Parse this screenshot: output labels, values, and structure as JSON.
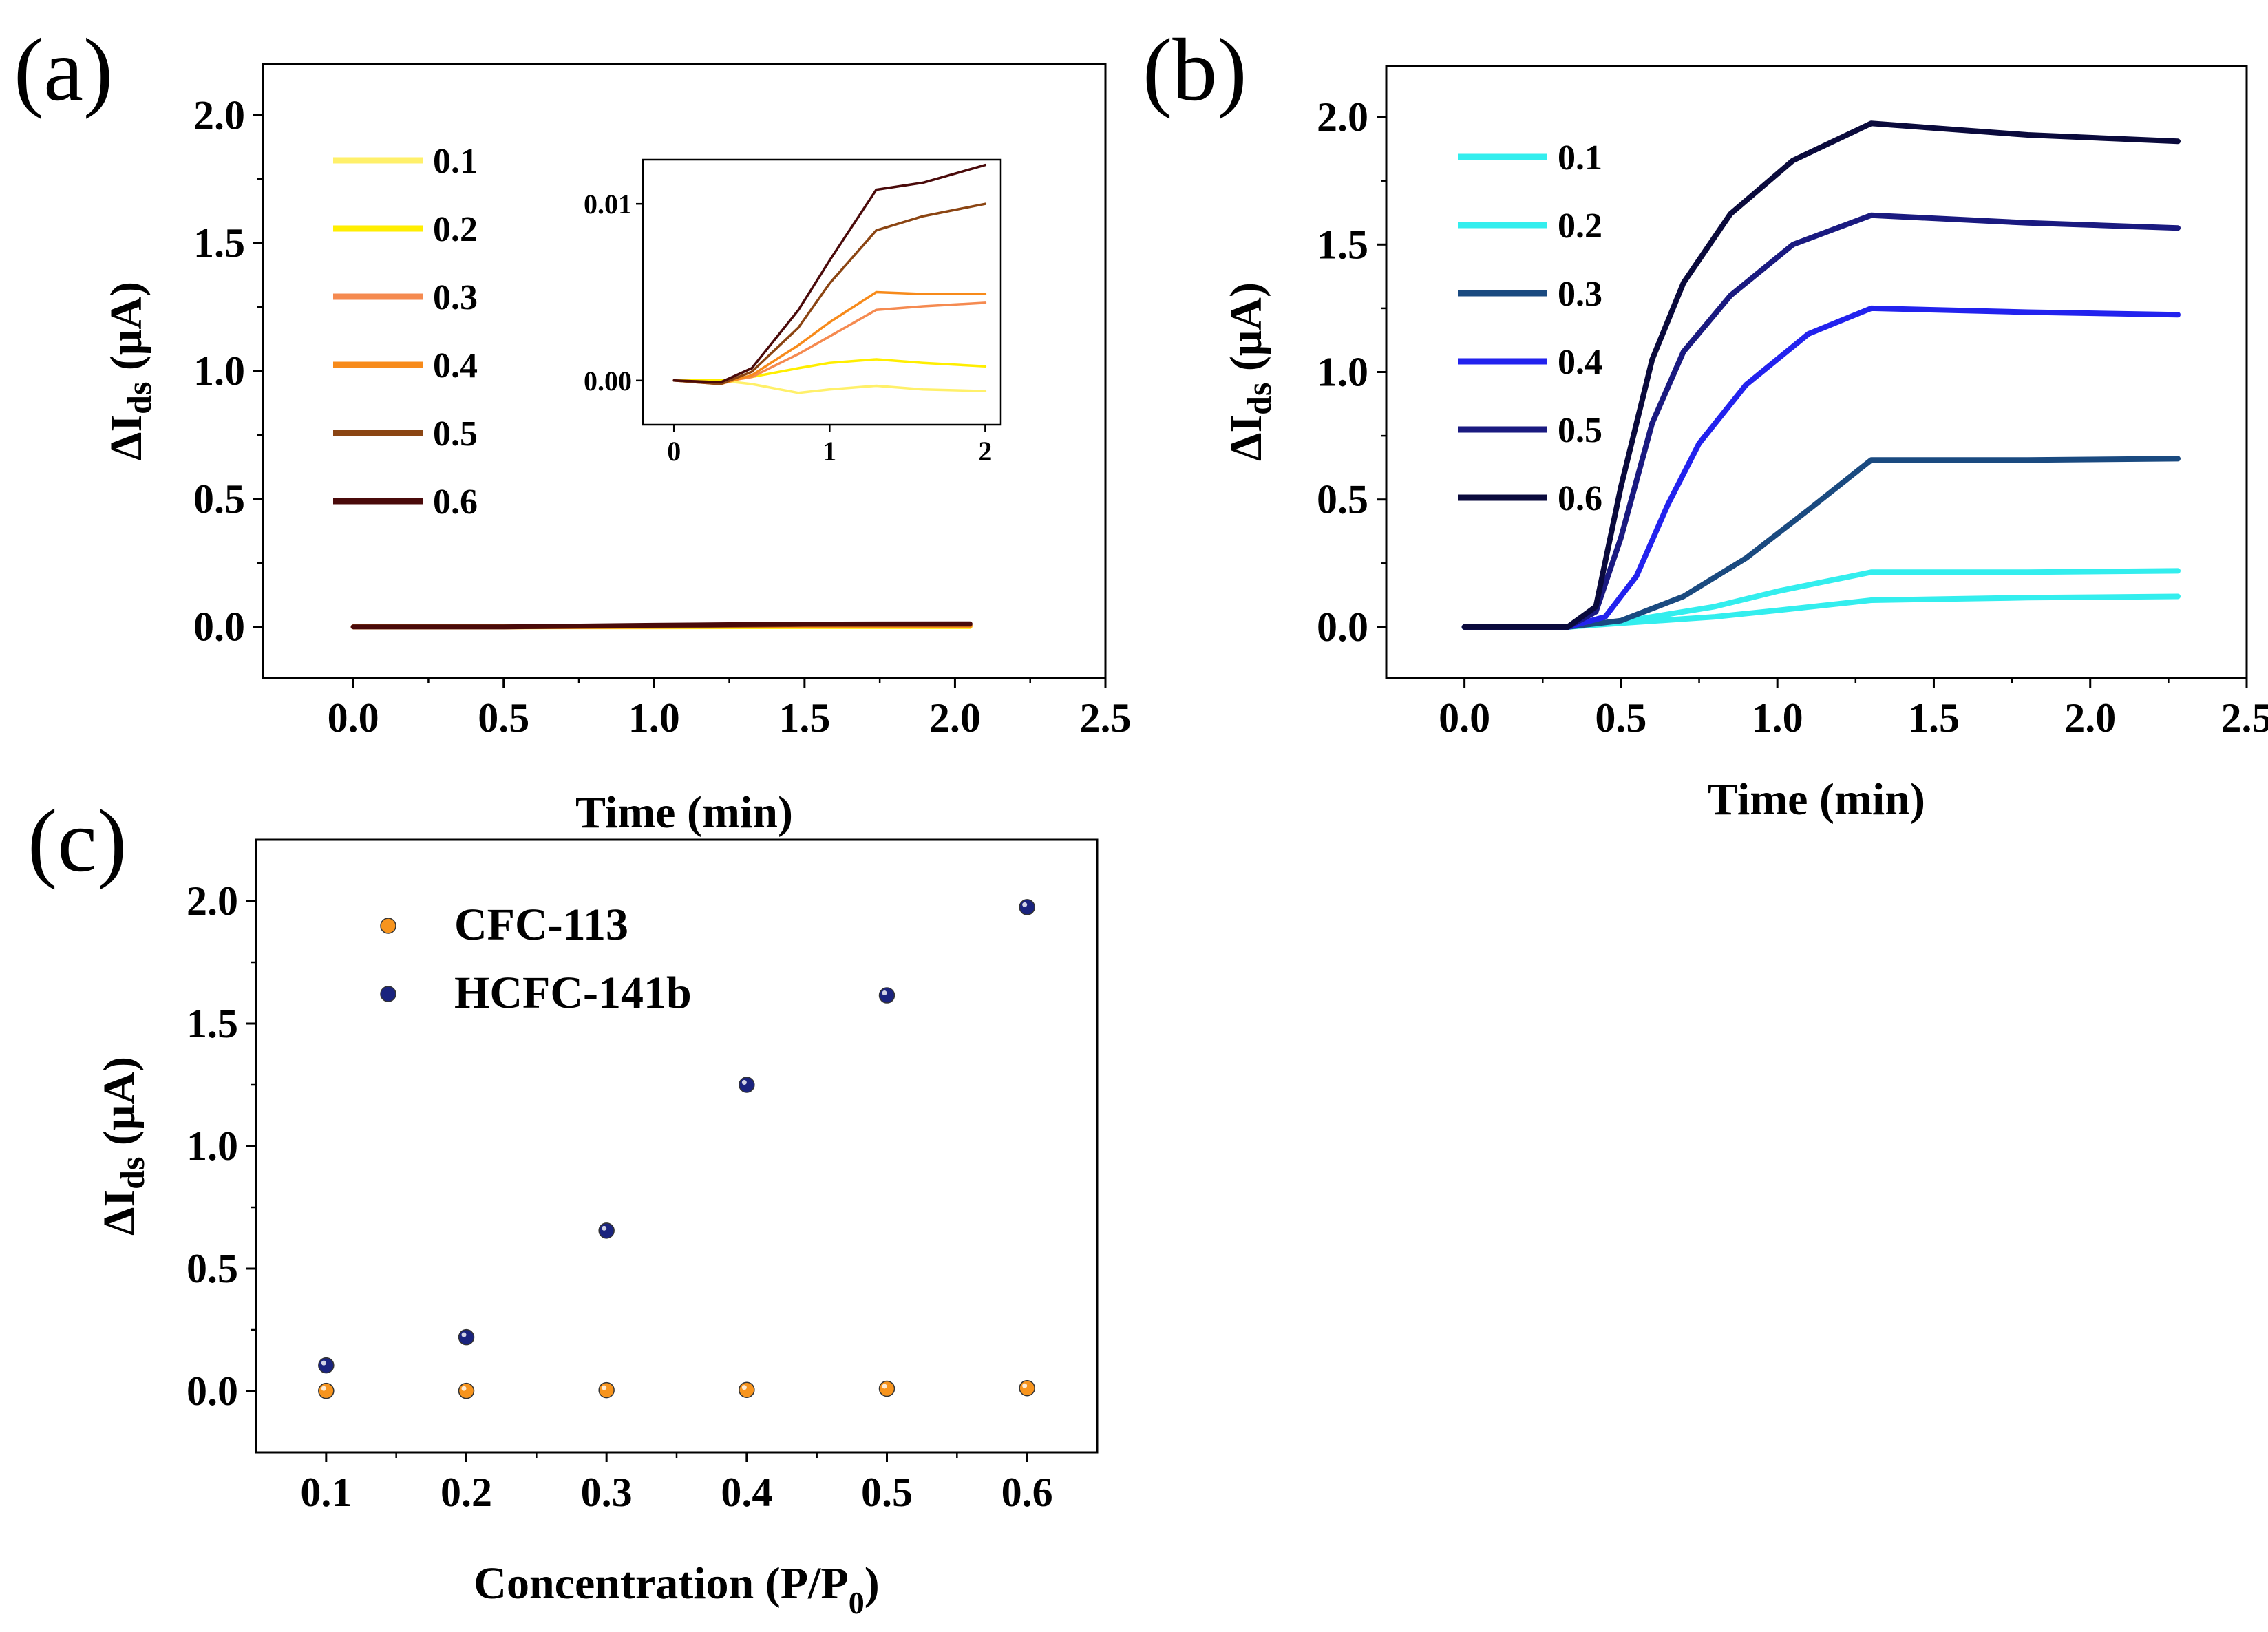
{
  "panel_labels": {
    "a": "(a)",
    "b": "(b)",
    "c": "(c)"
  },
  "chart_data": [
    {
      "panel": "a",
      "type": "line",
      "title": "",
      "xlabel": "Time (min)",
      "ylabel_main": "ΔI",
      "ylabel_sub": "ds",
      "ylabel_unit": " (μA)",
      "xlim": [
        -0.3,
        2.5
      ],
      "ylim": [
        -0.2,
        2.2
      ],
      "xticks": [
        0.0,
        0.5,
        1.0,
        1.5,
        2.0,
        2.5
      ],
      "xtick_labels": [
        "0.0",
        "0.5",
        "1.0",
        "1.5",
        "2.0",
        "2.5"
      ],
      "yticks": [
        0.0,
        0.5,
        1.0,
        1.5,
        2.0
      ],
      "ytick_labels": [
        "0.0",
        "0.5",
        "1.0",
        "1.5",
        "2.0"
      ],
      "legend_position": "top-left",
      "series": [
        {
          "name": "0.1",
          "color": "#fff06a",
          "points": [
            [
              0,
              0
            ],
            [
              0.5,
              0
            ],
            [
              1.0,
              0
            ],
            [
              1.5,
              0.001
            ],
            [
              2.05,
              0.001
            ]
          ]
        },
        {
          "name": "0.2",
          "color": "#ffee00",
          "points": [
            [
              0,
              0
            ],
            [
              0.5,
              0
            ],
            [
              1.0,
              0.001
            ],
            [
              1.5,
              0.001
            ],
            [
              2.05,
              0.001
            ]
          ]
        },
        {
          "name": "0.3",
          "color": "#f58a50",
          "points": [
            [
              0,
              0
            ],
            [
              0.5,
              0
            ],
            [
              1.0,
              0.002
            ],
            [
              1.5,
              0.004
            ],
            [
              2.05,
              0.004
            ]
          ]
        },
        {
          "name": "0.4",
          "color": "#f78a1a",
          "points": [
            [
              0,
              0
            ],
            [
              0.5,
              0
            ],
            [
              1.0,
              0.003
            ],
            [
              1.5,
              0.005
            ],
            [
              2.05,
              0.005
            ]
          ]
        },
        {
          "name": "0.5",
          "color": "#8b4513",
          "points": [
            [
              0,
              0
            ],
            [
              0.5,
              0
            ],
            [
              1.0,
              0.004
            ],
            [
              1.5,
              0.009
            ],
            [
              2.05,
              0.01
            ]
          ]
        },
        {
          "name": "0.6",
          "color": "#4a0a0a",
          "points": [
            [
              0,
              0
            ],
            [
              0.5,
              0
            ],
            [
              1.0,
              0.006
            ],
            [
              1.5,
              0.011
            ],
            [
              2.05,
              0.012
            ]
          ]
        }
      ],
      "inset": {
        "xlim": [
          -0.2,
          2.1
        ],
        "ylim": [
          -0.0025,
          0.0125
        ],
        "xticks": [
          0,
          1,
          2
        ],
        "xtick_labels": [
          "0",
          "1",
          "2"
        ],
        "yticks": [
          0.0,
          0.01
        ],
        "ytick_labels": [
          "0.00",
          "0.01"
        ],
        "series": [
          {
            "name": "0.1",
            "color": "#fff06a",
            "points": [
              [
                0,
                0
              ],
              [
                0.3,
                0
              ],
              [
                0.5,
                -0.0002
              ],
              [
                0.8,
                -0.0007
              ],
              [
                1.0,
                -0.0005
              ],
              [
                1.3,
                -0.0003
              ],
              [
                1.6,
                -0.0005
              ],
              [
                2.0,
                -0.0006
              ]
            ]
          },
          {
            "name": "0.2",
            "color": "#ffee00",
            "points": [
              [
                0,
                0
              ],
              [
                0.3,
                0
              ],
              [
                0.5,
                0.0002
              ],
              [
                0.8,
                0.0007
              ],
              [
                1.0,
                0.001
              ],
              [
                1.3,
                0.0012
              ],
              [
                1.6,
                0.001
              ],
              [
                2.0,
                0.0008
              ]
            ]
          },
          {
            "name": "0.3",
            "color": "#f58a50",
            "points": [
              [
                0,
                0
              ],
              [
                0.3,
                -0.0001
              ],
              [
                0.5,
                0.0002
              ],
              [
                0.8,
                0.0015
              ],
              [
                1.0,
                0.0025
              ],
              [
                1.3,
                0.004
              ],
              [
                1.6,
                0.0042
              ],
              [
                2.0,
                0.0044
              ]
            ]
          },
          {
            "name": "0.4",
            "color": "#f78a1a",
            "points": [
              [
                0,
                0
              ],
              [
                0.3,
                -0.0002
              ],
              [
                0.5,
                0.0003
              ],
              [
                0.8,
                0.002
              ],
              [
                1.0,
                0.0033
              ],
              [
                1.3,
                0.005
              ],
              [
                1.6,
                0.0049
              ],
              [
                2.0,
                0.0049
              ]
            ]
          },
          {
            "name": "0.5",
            "color": "#8b4513",
            "points": [
              [
                0,
                0
              ],
              [
                0.3,
                -0.0002
              ],
              [
                0.5,
                0.0005
              ],
              [
                0.8,
                0.003
              ],
              [
                1.0,
                0.0055
              ],
              [
                1.3,
                0.0085
              ],
              [
                1.6,
                0.0093
              ],
              [
                2.0,
                0.01
              ]
            ]
          },
          {
            "name": "0.6",
            "color": "#4a0a0a",
            "points": [
              [
                0,
                0
              ],
              [
                0.3,
                -0.0001
              ],
              [
                0.5,
                0.0007
              ],
              [
                0.8,
                0.004
              ],
              [
                1.0,
                0.0068
              ],
              [
                1.3,
                0.0108
              ],
              [
                1.6,
                0.0112
              ],
              [
                2.0,
                0.0122
              ]
            ]
          }
        ]
      }
    },
    {
      "panel": "b",
      "type": "line",
      "title": "",
      "xlabel": "Time (min)",
      "ylabel_main": "ΔI",
      "ylabel_sub": "ds",
      "ylabel_unit": " (μA)",
      "xlim": [
        -0.25,
        2.5
      ],
      "ylim": [
        -0.2,
        2.2
      ],
      "xticks": [
        0.0,
        0.5,
        1.0,
        1.5,
        2.0,
        2.5
      ],
      "xtick_labels": [
        "0.0",
        "0.5",
        "1.0",
        "1.5",
        "2.0",
        "2.5"
      ],
      "yticks": [
        0.0,
        0.5,
        1.0,
        1.5,
        2.0
      ],
      "ytick_labels": [
        "0.0",
        "0.5",
        "1.0",
        "1.5",
        "2.0"
      ],
      "legend_position": "top-left",
      "series": [
        {
          "name": "0.1",
          "color": "#33eeee",
          "points": [
            [
              0,
              0
            ],
            [
              0.33,
              0
            ],
            [
              0.5,
              0.015
            ],
            [
              0.8,
              0.04
            ],
            [
              1.0,
              0.065
            ],
            [
              1.3,
              0.105
            ],
            [
              1.8,
              0.115
            ],
            [
              2.28,
              0.12
            ]
          ]
        },
        {
          "name": "0.2",
          "color": "#33eeee",
          "points": [
            [
              0,
              0
            ],
            [
              0.33,
              0
            ],
            [
              0.5,
              0.02
            ],
            [
              0.8,
              0.08
            ],
            [
              1.0,
              0.14
            ],
            [
              1.3,
              0.215
            ],
            [
              1.8,
              0.215
            ],
            [
              2.28,
              0.22
            ]
          ]
        },
        {
          "name": "0.3",
          "color": "#1a4a80",
          "points": [
            [
              0,
              0
            ],
            [
              0.33,
              0
            ],
            [
              0.5,
              0.025
            ],
            [
              0.7,
              0.12
            ],
            [
              0.9,
              0.27
            ],
            [
              1.1,
              0.46
            ],
            [
              1.3,
              0.655
            ],
            [
              1.8,
              0.655
            ],
            [
              2.28,
              0.66
            ]
          ]
        },
        {
          "name": "0.4",
          "color": "#2222ee",
          "points": [
            [
              0,
              0
            ],
            [
              0.33,
              0
            ],
            [
              0.45,
              0.04
            ],
            [
              0.55,
              0.2
            ],
            [
              0.65,
              0.48
            ],
            [
              0.75,
              0.72
            ],
            [
              0.9,
              0.95
            ],
            [
              1.1,
              1.15
            ],
            [
              1.3,
              1.25
            ],
            [
              1.8,
              1.235
            ],
            [
              2.28,
              1.225
            ]
          ]
        },
        {
          "name": "0.5",
          "color": "#1a1a80",
          "points": [
            [
              0,
              0
            ],
            [
              0.33,
              0
            ],
            [
              0.42,
              0.06
            ],
            [
              0.5,
              0.35
            ],
            [
              0.6,
              0.8
            ],
            [
              0.7,
              1.08
            ],
            [
              0.85,
              1.3
            ],
            [
              1.05,
              1.5
            ],
            [
              1.3,
              1.615
            ],
            [
              1.8,
              1.585
            ],
            [
              2.28,
              1.565
            ]
          ]
        },
        {
          "name": "0.6",
          "color": "#0a0a3c",
          "points": [
            [
              0,
              0
            ],
            [
              0.33,
              0
            ],
            [
              0.42,
              0.08
            ],
            [
              0.5,
              0.55
            ],
            [
              0.6,
              1.05
            ],
            [
              0.7,
              1.35
            ],
            [
              0.85,
              1.62
            ],
            [
              1.05,
              1.83
            ],
            [
              1.3,
              1.975
            ],
            [
              1.8,
              1.93
            ],
            [
              2.28,
              1.905
            ]
          ]
        }
      ]
    },
    {
      "panel": "c",
      "type": "scatter",
      "title": "",
      "xlabel_main": "Concentration (P/P",
      "xlabel_sub": "0",
      "xlabel_end": ")",
      "ylabel_main": "ΔI",
      "ylabel_sub": "ds",
      "ylabel_unit": " (μA)",
      "xlim": [
        0.05,
        0.65
      ],
      "ylim": [
        -0.25,
        2.25
      ],
      "xticks": [
        0.1,
        0.2,
        0.3,
        0.4,
        0.5,
        0.6
      ],
      "xtick_labels": [
        "0.1",
        "0.2",
        "0.3",
        "0.4",
        "0.5",
        "0.6"
      ],
      "yticks": [
        0.0,
        0.5,
        1.0,
        1.5,
        2.0
      ],
      "ytick_labels": [
        "0.0",
        "0.5",
        "1.0",
        "1.5",
        "2.0"
      ],
      "legend_position": "top-left",
      "series": [
        {
          "name": "CFC-113",
          "color": "#f7941d",
          "x": [
            0.1,
            0.2,
            0.3,
            0.4,
            0.5,
            0.6
          ],
          "values": [
            0.001,
            0.001,
            0.004,
            0.005,
            0.01,
            0.012
          ]
        },
        {
          "name": "HCFC-141b",
          "color": "#1a237e",
          "x": [
            0.1,
            0.2,
            0.3,
            0.4,
            0.5,
            0.6
          ],
          "values": [
            0.105,
            0.22,
            0.655,
            1.25,
            1.615,
            1.975
          ]
        }
      ]
    }
  ]
}
